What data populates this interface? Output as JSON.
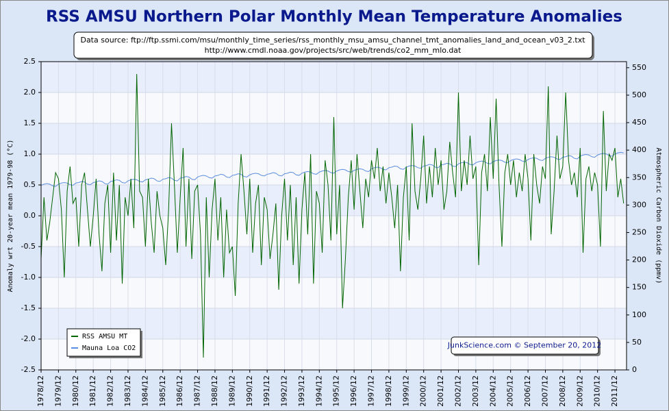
{
  "chart_data": {
    "type": "line",
    "title": "RSS AMSU Northern Polar Monthly Mean Temperature Anomalies",
    "source_lines": [
      "Data source: ftp://ftp.ssmi.com/msu/monthly_time_series/rss_monthly_msu_amsu_channel_tmt_anomalies_land_and_ocean_v03_2.txt",
      "http://www.cmdl.noaa.gov/projects/src/web/trends/co2_mm_mlo.dat"
    ],
    "ylabel": "Anomaly wrt 20-year mean 1979-98 (°C)",
    "y2label": "Atmospheric Carbon Dioxide (ppmv)",
    "credit": "JunkScience.com © September 20, 2012",
    "legend": "lower left",
    "grid": true,
    "xlim": [
      "1978/12",
      "2012/08"
    ],
    "xticks": [
      "1978/12",
      "1979/12",
      "1980/12",
      "1981/12",
      "1982/12",
      "1983/12",
      "1984/12",
      "1985/12",
      "1986/12",
      "1987/12",
      "1988/12",
      "1989/12",
      "1990/12",
      "1991/12",
      "1992/12",
      "1993/12",
      "1994/12",
      "1995/12",
      "1996/12",
      "1997/12",
      "1998/12",
      "1999/12",
      "2000/12",
      "2001/12",
      "2002/12",
      "2003/12",
      "2004/12",
      "2005/12",
      "2006/12",
      "2007/12",
      "2008/12",
      "2009/12",
      "2010/12",
      "2011/12"
    ],
    "ylim": [
      -2.5,
      2.5
    ],
    "yticks": [
      2.5,
      {
        "value": 2,
        "label": "2.0"
      },
      1.5,
      {
        "value": 1,
        "label": "1.0"
      },
      0.5,
      {
        "value": 0,
        "label": "0.0"
      },
      -0.5,
      {
        "value": -1,
        "label": "-1.0"
      },
      -1.5,
      {
        "value": -2,
        "label": "-2.0"
      },
      -2.5
    ],
    "y2lim": [
      0,
      561
    ],
    "y2ticks": [
      0,
      50,
      100,
      150,
      200,
      250,
      300,
      350,
      400,
      450,
      500,
      550
    ],
    "x": [
      "1978/12",
      "1979/02",
      "1979/04",
      "1979/06",
      "1979/08",
      "1979/10",
      "1979/12",
      "1980/02",
      "1980/04",
      "1980/06",
      "1980/08",
      "1980/10",
      "1980/12",
      "1981/02",
      "1981/04",
      "1981/06",
      "1981/08",
      "1981/10",
      "1981/12",
      "1982/02",
      "1982/04",
      "1982/06",
      "1982/08",
      "1982/10",
      "1982/12",
      "1983/02",
      "1983/04",
      "1983/06",
      "1983/08",
      "1983/10",
      "1983/12",
      "1984/02",
      "1984/04",
      "1984/06",
      "1984/08",
      "1984/10",
      "1984/12",
      "1985/02",
      "1985/04",
      "1985/06",
      "1985/08",
      "1985/10",
      "1985/12",
      "1986/02",
      "1986/04",
      "1986/06",
      "1986/08",
      "1986/10",
      "1986/12",
      "1987/02",
      "1987/04",
      "1987/06",
      "1987/08",
      "1987/10",
      "1987/12",
      "1988/02",
      "1988/04",
      "1988/06",
      "1988/08",
      "1988/10",
      "1988/12",
      "1989/02",
      "1989/04",
      "1989/06",
      "1989/08",
      "1989/10",
      "1989/12",
      "1990/02",
      "1990/04",
      "1990/06",
      "1990/08",
      "1990/10",
      "1990/12",
      "1991/02",
      "1991/04",
      "1991/06",
      "1991/08",
      "1991/10",
      "1991/12",
      "1992/02",
      "1992/04",
      "1992/06",
      "1992/08",
      "1992/10",
      "1992/12",
      "1993/02",
      "1993/04",
      "1993/06",
      "1993/08",
      "1993/10",
      "1993/12",
      "1994/02",
      "1994/04",
      "1994/06",
      "1994/08",
      "1994/10",
      "1994/12",
      "1995/02",
      "1995/04",
      "1995/06",
      "1995/08",
      "1995/10",
      "1995/12",
      "1996/02",
      "1996/04",
      "1996/06",
      "1996/08",
      "1996/10",
      "1996/12",
      "1997/02",
      "1997/04",
      "1997/06",
      "1997/08",
      "1997/10",
      "1997/12",
      "1998/02",
      "1998/04",
      "1998/06",
      "1998/08",
      "1998/10",
      "1998/12",
      "1999/02",
      "1999/04",
      "1999/06",
      "1999/08",
      "1999/10",
      "1999/12",
      "2000/02",
      "2000/04",
      "2000/06",
      "2000/08",
      "2000/10",
      "2000/12",
      "2001/02",
      "2001/04",
      "2001/06",
      "2001/08",
      "2001/10",
      "2001/12",
      "2002/02",
      "2002/04",
      "2002/06",
      "2002/08",
      "2002/10",
      "2002/12",
      "2003/02",
      "2003/04",
      "2003/06",
      "2003/08",
      "2003/10",
      "2003/12",
      "2004/02",
      "2004/04",
      "2004/06",
      "2004/08",
      "2004/10",
      "2004/12",
      "2005/02",
      "2005/04",
      "2005/06",
      "2005/08",
      "2005/10",
      "2005/12",
      "2006/02",
      "2006/04",
      "2006/06",
      "2006/08",
      "2006/10",
      "2006/12",
      "2007/02",
      "2007/04",
      "2007/06",
      "2007/08",
      "2007/10",
      "2007/12",
      "2008/02",
      "2008/04",
      "2008/06",
      "2008/08",
      "2008/10",
      "2008/12",
      "2009/02",
      "2009/04",
      "2009/06",
      "2009/08",
      "2009/10",
      "2009/12",
      "2010/02",
      "2010/04",
      "2010/06",
      "2010/08",
      "2010/10",
      "2010/12",
      "2011/02",
      "2011/04",
      "2011/06",
      "2011/08",
      "2011/10",
      "2011/12",
      "2012/02",
      "2012/04",
      "2012/06"
    ],
    "series": [
      {
        "name": "RSS AMSU MT",
        "color": "#006400",
        "values": [
          -0.7,
          0.3,
          -0.4,
          -0.1,
          0.3,
          0.7,
          0.6,
          0.1,
          -1.0,
          0.4,
          0.8,
          0.2,
          0.3,
          -0.5,
          0.5,
          0.7,
          0.1,
          -0.5,
          0.0,
          0.6,
          -0.3,
          -0.9,
          0.2,
          0.5,
          -0.6,
          0.7,
          -0.4,
          0.5,
          -1.1,
          0.3,
          0.0,
          0.6,
          -0.2,
          2.3,
          0.4,
          0.3,
          -0.5,
          0.6,
          -0.1,
          -0.6,
          0.4,
          0.0,
          -0.2,
          -0.8,
          0.1,
          1.5,
          0.5,
          -0.6,
          0.3,
          1.1,
          -0.5,
          0.6,
          -0.7,
          0.4,
          0.5,
          -0.3,
          -2.3,
          0.3,
          -1.0,
          0.1,
          0.6,
          -0.4,
          0.3,
          -1.0,
          0.1,
          -0.6,
          -0.5,
          -1.3,
          0.2,
          1.0,
          0.4,
          -0.3,
          0.6,
          -0.6,
          0.2,
          0.5,
          -0.8,
          0.3,
          0.1,
          -0.7,
          -0.3,
          0.2,
          -1.2,
          0.0,
          0.6,
          -0.4,
          0.5,
          -0.8,
          0.3,
          -1.1,
          0.1,
          0.7,
          -0.3,
          1.0,
          -1.1,
          0.4,
          0.2,
          -0.6,
          0.9,
          0.5,
          -0.4,
          1.6,
          -0.3,
          0.5,
          -1.5,
          -0.7,
          0.3,
          0.9,
          0.1,
          1.0,
          0.4,
          -0.2,
          0.6,
          0.3,
          0.9,
          0.6,
          1.1,
          0.4,
          0.8,
          0.2,
          0.7,
          0.3,
          -0.2,
          0.5,
          -0.9,
          0.3,
          0.8,
          -0.4,
          1.5,
          0.4,
          0.1,
          0.6,
          1.3,
          0.2,
          0.8,
          0.3,
          1.1,
          0.5,
          0.9,
          0.1,
          0.4,
          1.2,
          0.7,
          0.3,
          2.0,
          0.4,
          0.9,
          0.5,
          1.3,
          0.6,
          0.8,
          -0.8,
          0.7,
          1.0,
          0.4,
          1.6,
          0.6,
          1.9,
          0.5,
          -0.5,
          0.7,
          1.0,
          0.5,
          0.9,
          0.3,
          0.7,
          0.4,
          1.0,
          0.6,
          -0.4,
          1.0,
          0.5,
          0.2,
          0.8,
          0.6,
          2.1,
          -0.3,
          0.4,
          1.3,
          0.6,
          0.8,
          2.0,
          0.9,
          0.5,
          0.7,
          0.3,
          1.1,
          -0.6,
          0.6,
          0.8,
          0.4,
          0.7,
          0.5,
          -0.5,
          1.7,
          0.4,
          1.0,
          0.9,
          1.1,
          0.3,
          0.6,
          0.2
        ]
      },
      {
        "name": "Mauna Loa CO2",
        "color": "#5b8de0",
        "axis": "y2",
        "values": [
          336,
          338,
          339,
          338,
          335,
          334,
          338,
          340,
          341,
          340,
          337,
          336,
          340,
          341,
          343,
          342,
          338,
          337,
          341,
          342,
          344,
          343,
          339,
          338,
          343,
          344,
          346,
          345,
          341,
          340,
          344,
          346,
          347,
          346,
          343,
          342,
          346,
          347,
          349,
          348,
          344,
          343,
          347,
          348,
          350,
          349,
          345,
          344,
          349,
          350,
          352,
          351,
          347,
          346,
          351,
          353,
          354,
          353,
          350,
          349,
          353,
          354,
          356,
          355,
          351,
          350,
          354,
          355,
          357,
          356,
          352,
          351,
          355,
          357,
          358,
          357,
          354,
          353,
          356,
          357,
          359,
          358,
          354,
          353,
          357,
          358,
          360,
          359,
          355,
          354,
          358,
          360,
          361,
          360,
          357,
          356,
          360,
          362,
          363,
          362,
          359,
          358,
          362,
          364,
          365,
          364,
          361,
          360,
          363,
          365,
          366,
          365,
          362,
          361,
          366,
          368,
          369,
          368,
          365,
          364,
          368,
          369,
          371,
          370,
          366,
          365,
          369,
          371,
          372,
          371,
          368,
          367,
          371,
          372,
          374,
          373,
          369,
          368,
          373,
          374,
          376,
          375,
          371,
          370,
          375,
          377,
          378,
          377,
          374,
          373,
          377,
          379,
          380,
          379,
          376,
          375,
          379,
          381,
          382,
          381,
          378,
          377,
          381,
          383,
          384,
          383,
          380,
          379,
          383,
          385,
          386,
          385,
          382,
          381,
          385,
          387,
          388,
          387,
          384,
          383,
          387,
          388,
          390,
          389,
          385,
          384,
          389,
          391,
          392,
          391,
          388,
          387,
          391,
          393,
          394,
          393,
          390,
          389,
          393,
          395,
          396,
          395
        ]
      }
    ]
  }
}
